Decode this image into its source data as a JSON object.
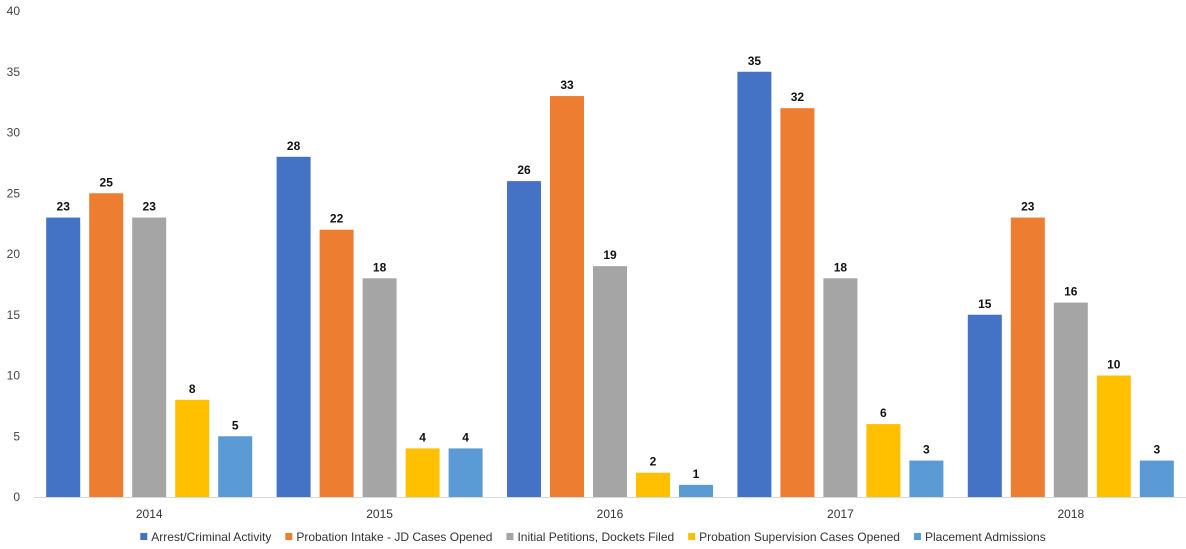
{
  "chart_data": {
    "type": "bar",
    "categories": [
      "2014",
      "2015",
      "2016",
      "2017",
      "2018"
    ],
    "series": [
      {
        "name": "Arrest/Criminal Activity",
        "color": "#4472C4",
        "values": [
          23,
          28,
          26,
          35,
          15
        ]
      },
      {
        "name": "Probation Intake - JD Cases Opened",
        "color": "#ED7D31",
        "values": [
          25,
          22,
          33,
          32,
          23
        ]
      },
      {
        "name": "Initial Petitions, Dockets Filed",
        "color": "#A5A5A5",
        "values": [
          23,
          18,
          19,
          18,
          16
        ]
      },
      {
        "name": "Probation Supervision Cases Opened",
        "color": "#FFC000",
        "values": [
          8,
          4,
          2,
          6,
          10
        ]
      },
      {
        "name": "Placement Admissions",
        "color": "#5B9BD5",
        "values": [
          5,
          4,
          1,
          3,
          3
        ]
      }
    ],
    "ylim": [
      0,
      40
    ],
    "yticks": [
      0,
      5,
      10,
      15,
      20,
      25,
      30,
      35,
      40
    ],
    "grid": false,
    "legend_position": "bottom",
    "data_labels": true
  }
}
